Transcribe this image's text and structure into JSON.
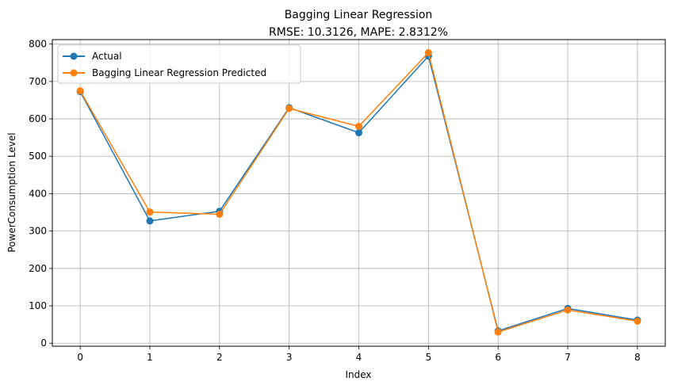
{
  "chart_data": {
    "type": "line",
    "title": "Bagging Linear Regression",
    "subtitle": "RMSE: 10.3126, MAPE: 2.8312%",
    "xlabel": "Index",
    "ylabel": "PowerConsumption Level",
    "x": [
      0,
      1,
      2,
      3,
      4,
      5,
      6,
      7,
      8
    ],
    "xticks": [
      "0",
      "1",
      "2",
      "3",
      "4",
      "5",
      "6",
      "7",
      "8"
    ],
    "yticks": [
      "0",
      "100",
      "200",
      "300",
      "400",
      "500",
      "600",
      "700",
      "800"
    ],
    "xlim": [
      -0.4,
      8.4
    ],
    "ylim": [
      -8,
      812
    ],
    "grid": true,
    "legend_position": "top-left",
    "series": [
      {
        "name": "Actual",
        "color": "#1f77b4",
        "marker": "circle",
        "values": [
          673,
          327,
          353,
          630,
          563,
          768,
          33,
          93,
          62
        ]
      },
      {
        "name": "Bagging Linear Regression Predicted",
        "color": "#ff7f0e",
        "marker": "circle",
        "values": [
          675,
          351,
          345,
          628,
          580,
          777,
          30,
          89,
          59
        ]
      }
    ]
  }
}
